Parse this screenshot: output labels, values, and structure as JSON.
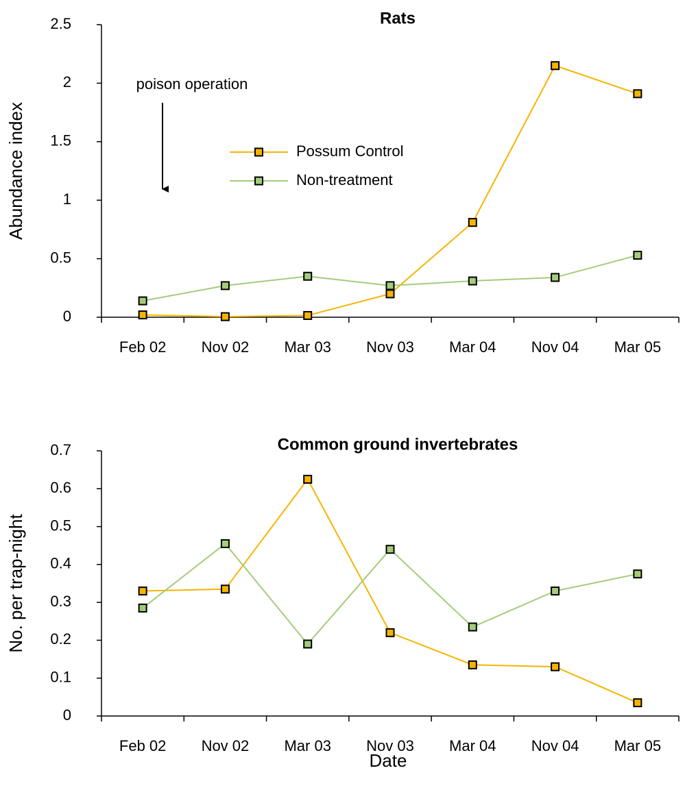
{
  "chart_data": [
    {
      "type": "line",
      "title": "Rats",
      "y_label": "Abundance index",
      "annotation": "poison operation",
      "categories": [
        "Feb 02",
        "Nov 02",
        "Mar 03",
        "Nov 03",
        "Mar 04",
        "Nov 04",
        "Mar 05"
      ],
      "series": [
        {
          "name": "Possum Control",
          "color": "#f5b400",
          "values": [
            0.02,
            0.005,
            0.015,
            0.2,
            0.81,
            2.15,
            1.91
          ]
        },
        {
          "name": "Non-treatment",
          "color": "#a4cc7a",
          "values": [
            0.14,
            0.27,
            0.35,
            0.27,
            0.31,
            0.34,
            0.53
          ]
        }
      ],
      "ylim": [
        0,
        2.5
      ],
      "yticks": [
        0,
        0.5,
        1,
        1.5,
        2,
        2.5
      ],
      "legend": "center"
    },
    {
      "type": "line",
      "title": "Common ground invertebrates",
      "y_label": "No. per trap-night",
      "x_label": "Date",
      "categories": [
        "Feb 02",
        "Nov 02",
        "Mar 03",
        "Nov 03",
        "Mar 04",
        "Nov 04",
        "Mar 05"
      ],
      "series": [
        {
          "color": "#f5b400",
          "values": [
            0.33,
            0.335,
            0.625,
            0.22,
            0.135,
            0.13,
            0.035
          ]
        },
        {
          "color": "#a4cc7a",
          "values": [
            0.285,
            0.455,
            0.19,
            0.44,
            0.235,
            0.33,
            0.375
          ]
        }
      ],
      "ylim": [
        0,
        0.7
      ],
      "yticks": [
        0,
        0.1,
        0.2,
        0.3,
        0.4,
        0.5,
        0.6,
        0.7
      ]
    }
  ]
}
